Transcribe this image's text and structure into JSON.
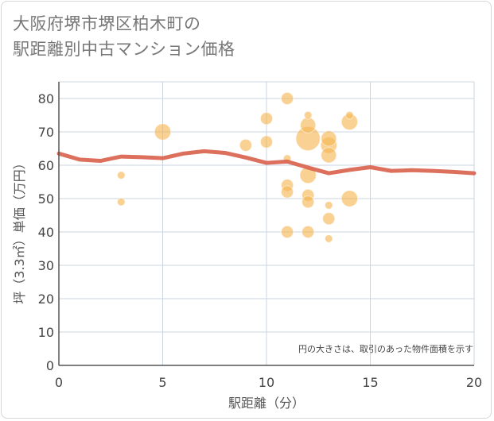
{
  "title_lines": [
    "大阪府堺市堺区柏木町の",
    "駅距離別中古マンション価格"
  ],
  "chart_data": {
    "type": "scatter",
    "title": "大阪府堺市堺区柏木町の駅距離別中古マンション価格",
    "xlabel": "駅距離（分）",
    "ylabel": "坪（3.3㎡）単価（万円）",
    "xlim": [
      0,
      20
    ],
    "ylim": [
      0,
      85
    ],
    "xticks": [
      0,
      5,
      10,
      15,
      20
    ],
    "yticks": [
      0,
      10,
      20,
      30,
      40,
      50,
      60,
      70,
      80
    ],
    "grid": true,
    "note": "円の大きさは、取引のあった物件面積を示す",
    "colors": {
      "bubble": "#f5b451",
      "line": "#d9604a",
      "grid": "#c8d6e2",
      "axis": "#555555"
    },
    "bubbles": [
      {
        "x": 3,
        "y": 57,
        "size": 2
      },
      {
        "x": 3,
        "y": 49,
        "size": 2
      },
      {
        "x": 5,
        "y": 70,
        "size": 9
      },
      {
        "x": 9,
        "y": 66,
        "size": 5
      },
      {
        "x": 10,
        "y": 74,
        "size": 5
      },
      {
        "x": 10,
        "y": 67,
        "size": 5
      },
      {
        "x": 11,
        "y": 80,
        "size": 5
      },
      {
        "x": 11,
        "y": 62,
        "size": 2
      },
      {
        "x": 11,
        "y": 54,
        "size": 5
      },
      {
        "x": 11,
        "y": 52,
        "size": 5
      },
      {
        "x": 11,
        "y": 40,
        "size": 5
      },
      {
        "x": 12,
        "y": 75,
        "size": 2
      },
      {
        "x": 12,
        "y": 72,
        "size": 8
      },
      {
        "x": 12,
        "y": 68,
        "size": 20
      },
      {
        "x": 12,
        "y": 57,
        "size": 9
      },
      {
        "x": 12,
        "y": 51,
        "size": 5
      },
      {
        "x": 12,
        "y": 49,
        "size": 5
      },
      {
        "x": 12,
        "y": 40,
        "size": 5
      },
      {
        "x": 13,
        "y": 68,
        "size": 8
      },
      {
        "x": 13,
        "y": 66,
        "size": 9
      },
      {
        "x": 13,
        "y": 63,
        "size": 8
      },
      {
        "x": 13,
        "y": 48,
        "size": 2
      },
      {
        "x": 13,
        "y": 44,
        "size": 5
      },
      {
        "x": 13,
        "y": 38,
        "size": 2
      },
      {
        "x": 14,
        "y": 75,
        "size": 2
      },
      {
        "x": 14,
        "y": 73,
        "size": 9
      },
      {
        "x": 14,
        "y": 50,
        "size": 9
      }
    ],
    "trend": {
      "x": [
        0,
        1,
        2,
        3,
        4,
        5,
        6,
        7,
        8,
        9,
        10,
        11,
        12,
        13,
        14,
        15,
        16,
        17,
        18,
        19,
        20
      ],
      "y": [
        63.5,
        61.7,
        61.3,
        62.6,
        62.4,
        62.1,
        63.5,
        64.2,
        63.7,
        62.3,
        60.7,
        61.1,
        59.3,
        57.6,
        58.6,
        59.4,
        58.3,
        58.5,
        58.3,
        58.0,
        57.6
      ]
    }
  }
}
